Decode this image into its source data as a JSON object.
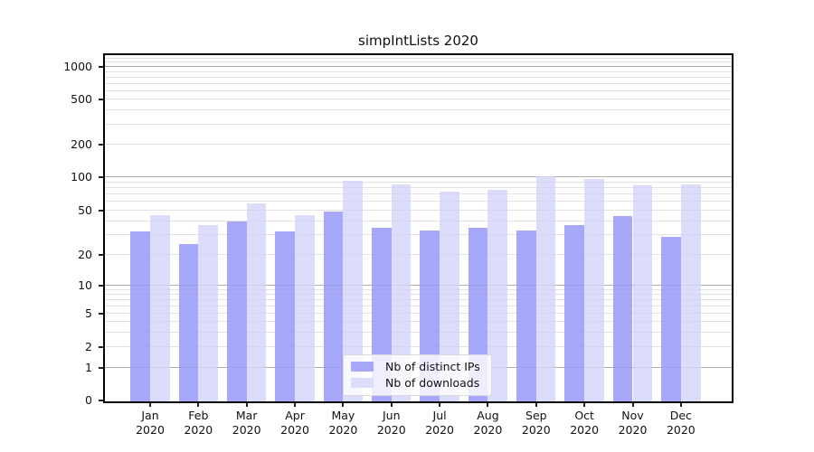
{
  "chart_data": {
    "type": "bar",
    "title": "simpIntLists 2020",
    "categories": [
      "Jan",
      "Feb",
      "Mar",
      "Apr",
      "May",
      "Jun",
      "Jul",
      "Aug",
      "Sep",
      "Oct",
      "Nov",
      "Dec"
    ],
    "category_year": "2020",
    "series": [
      {
        "name": "Nb of distinct IPs",
        "color": "#a8a8fa",
        "values": [
          32,
          25,
          40,
          32,
          49,
          35,
          33,
          35,
          33,
          37,
          44,
          29
        ]
      },
      {
        "name": "Nb of downloads",
        "color": "#dcdcfb",
        "values": [
          45,
          37,
          58,
          45,
          93,
          87,
          74,
          77,
          103,
          96,
          84,
          86
        ]
      }
    ],
    "xlabel": "",
    "ylabel": "",
    "yscale": "symlog",
    "y_ticks": [
      0,
      1,
      2,
      5,
      10,
      20,
      50,
      100,
      200,
      500,
      1000
    ],
    "ylim": [
      0,
      1284
    ],
    "grid": true,
    "legend_position": "lower center",
    "colors": {
      "bar_distinct_ips": "#a8a8fa",
      "bar_downloads": "#dcdcfb",
      "grid_major": "#b5b5b5",
      "grid_minor": "#e9e9e9",
      "axis": "#000000"
    }
  }
}
